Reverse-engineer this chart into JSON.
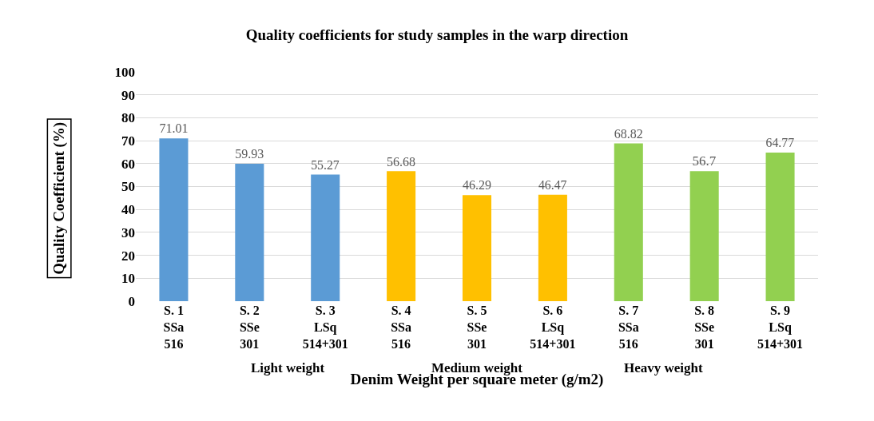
{
  "chart_data": {
    "type": "bar",
    "title": "Quality coefficients for study samples in the warp direction",
    "xlabel": "Denim Weight per square meter (g/m2)",
    "ylabel": "Quality Coefficient (%)",
    "categories": [
      "S. 1\nSSa\n516",
      "S. 2\nSSe\n301",
      "S. 3\nLSq\n514+301",
      "S. 4\nSSa\n516",
      "S. 5\nSSe\n301",
      "S. 6\nLSq\n514+301",
      "S. 7\nSSa\n516",
      "S. 8\nSSe\n301",
      "S. 9\nLSq\n514+301"
    ],
    "values": [
      71.01,
      59.93,
      55.27,
      56.68,
      46.29,
      46.47,
      68.82,
      56.7,
      64.77
    ],
    "colors": [
      "#5b9bd5",
      "#5b9bd5",
      "#5b9bd5",
      "#ffc000",
      "#ffc000",
      "#ffc000",
      "#92d050",
      "#92d050",
      "#92d050"
    ],
    "value_labels": [
      "71.01",
      "59.93",
      "55.27",
      "56.68",
      "46.29",
      "46.47",
      "68.82",
      "56.7",
      "64.77"
    ],
    "annotations": [
      "Light weight",
      "Medium weight",
      "Heavy weight"
    ],
    "ylim": [
      0,
      100
    ],
    "yticks": [
      0,
      10,
      20,
      30,
      40,
      50,
      60,
      70,
      80,
      90,
      100
    ],
    "grid": "y",
    "legend": false
  }
}
